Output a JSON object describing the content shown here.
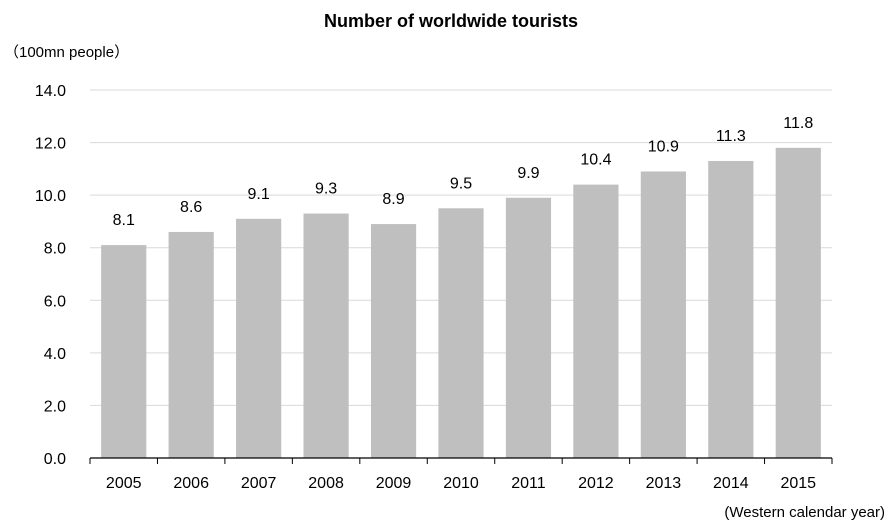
{
  "chart_data": {
    "type": "bar",
    "title": "Number of worldwide tourists",
    "ylabel": "（100mn people）",
    "xlabel": "(Western calendar year)",
    "categories": [
      "2005",
      "2006",
      "2007",
      "2008",
      "2009",
      "2010",
      "2011",
      "2012",
      "2013",
      "2014",
      "2015"
    ],
    "values": [
      8.1,
      8.6,
      9.1,
      9.3,
      8.9,
      9.5,
      9.9,
      10.4,
      10.9,
      11.3,
      11.8
    ],
    "value_labels": [
      "8.1",
      "8.6",
      "9.1",
      "9.3",
      "8.9",
      "9.5",
      "9.9",
      "10.4",
      "10.9",
      "11.3",
      "11.8"
    ],
    "ylim": [
      0,
      14
    ],
    "yticks": [
      "0.0",
      "2.0",
      "4.0",
      "6.0",
      "8.0",
      "10.0",
      "12.0",
      "14.0"
    ],
    "grid": true,
    "legend": "none",
    "colors": {
      "bar": "#bfbfbf",
      "grid": "#d9d9d9",
      "axis": "#000000"
    }
  }
}
